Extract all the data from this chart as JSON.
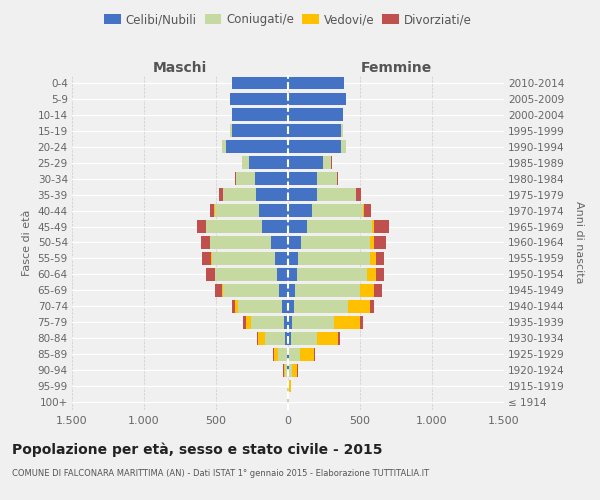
{
  "age_groups": [
    "100+",
    "95-99",
    "90-94",
    "85-89",
    "80-84",
    "75-79",
    "70-74",
    "65-69",
    "60-64",
    "55-59",
    "50-54",
    "45-49",
    "40-44",
    "35-39",
    "30-34",
    "25-29",
    "20-24",
    "15-19",
    "10-14",
    "5-9",
    "0-4"
  ],
  "birth_years": [
    "≤ 1914",
    "1915-1919",
    "1920-1924",
    "1925-1929",
    "1930-1934",
    "1935-1939",
    "1940-1944",
    "1945-1949",
    "1950-1954",
    "1955-1959",
    "1960-1964",
    "1965-1969",
    "1970-1974",
    "1975-1979",
    "1980-1984",
    "1985-1989",
    "1990-1994",
    "1995-1999",
    "2000-2004",
    "2005-2009",
    "2010-2014"
  ],
  "male_celibi": [
    2,
    3,
    5,
    10,
    20,
    30,
    40,
    60,
    75,
    90,
    120,
    180,
    200,
    220,
    230,
    270,
    430,
    390,
    390,
    400,
    390
  ],
  "male_coniugati": [
    2,
    5,
    15,
    60,
    140,
    230,
    310,
    390,
    430,
    440,
    420,
    390,
    310,
    230,
    130,
    50,
    30,
    10,
    0,
    0,
    0
  ],
  "male_vedovi": [
    0,
    2,
    10,
    30,
    50,
    30,
    20,
    10,
    5,
    5,
    3,
    2,
    1,
    1,
    0,
    0,
    0,
    0,
    0,
    0,
    0
  ],
  "male_divorziati": [
    0,
    0,
    2,
    5,
    5,
    20,
    20,
    50,
    60,
    60,
    60,
    60,
    30,
    30,
    5,
    2,
    0,
    0,
    0,
    0,
    0
  ],
  "female_nubili": [
    2,
    3,
    5,
    10,
    20,
    30,
    40,
    50,
    60,
    70,
    90,
    130,
    170,
    200,
    200,
    240,
    370,
    370,
    380,
    400,
    390
  ],
  "female_coniugate": [
    2,
    5,
    20,
    70,
    180,
    290,
    380,
    450,
    490,
    500,
    480,
    450,
    350,
    270,
    140,
    60,
    35,
    10,
    0,
    0,
    0
  ],
  "female_vedove": [
    2,
    10,
    40,
    100,
    150,
    180,
    150,
    100,
    60,
    40,
    30,
    20,
    5,
    5,
    2,
    2,
    0,
    0,
    0,
    0,
    0
  ],
  "female_divorziate": [
    0,
    0,
    2,
    5,
    10,
    20,
    30,
    50,
    60,
    60,
    80,
    100,
    50,
    30,
    5,
    2,
    0,
    0,
    0,
    0,
    0
  ],
  "color_celibi": "#4472c4",
  "color_coniugati": "#c5d9a0",
  "color_vedovi": "#ffc000",
  "color_divorziati": "#c0504d",
  "legend_labels": [
    "Celibi/Nubili",
    "Coniugati/e",
    "Vedovi/e",
    "Divorziati/e"
  ],
  "xlim": 1500,
  "title": "Popolazione per età, sesso e stato civile - 2015",
  "subtitle": "COMUNE DI FALCONARA MARITTIMA (AN) - Dati ISTAT 1° gennaio 2015 - Elaborazione TUTTITALIA.IT",
  "ylabel_left": "Fasce di età",
  "ylabel_right": "Anni di nascita",
  "header_left": "Maschi",
  "header_right": "Femmine",
  "bg_color": "#f0f0f0"
}
